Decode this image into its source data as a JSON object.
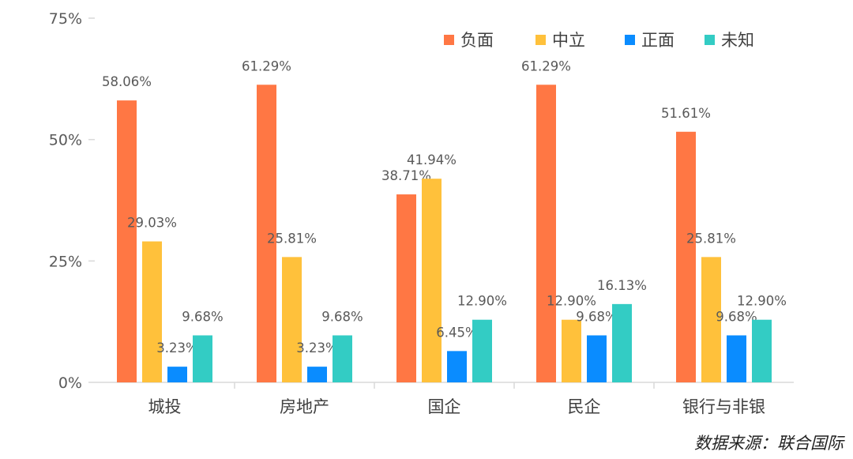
{
  "chart_data": {
    "type": "bar",
    "categories": [
      "城投",
      "房地产",
      "国企",
      "民企",
      "银行与非银"
    ],
    "series": [
      {
        "name": "负面",
        "color": "#FF7744",
        "values": [
          58.06,
          61.29,
          38.71,
          61.29,
          51.61
        ],
        "labels": [
          "58.06%",
          "61.29%",
          "38.71%",
          "61.29%",
          "51.61%"
        ]
      },
      {
        "name": "中立",
        "color": "#FFC13B",
        "values": [
          29.03,
          25.81,
          41.94,
          12.9,
          25.81
        ],
        "labels": [
          "29.03%",
          "25.81%",
          "41.94%",
          "12.90%",
          "25.81%"
        ]
      },
      {
        "name": "正面",
        "color": "#0A8CFF",
        "values": [
          3.23,
          3.23,
          6.45,
          9.68,
          9.68
        ],
        "labels": [
          "3.23%",
          "3.23%",
          "6.45%",
          "9.68%",
          "9.68%"
        ]
      },
      {
        "name": "未知",
        "color": "#33CCC4",
        "values": [
          9.68,
          9.68,
          12.9,
          16.13,
          12.9
        ],
        "labels": [
          "9.68%",
          "9.68%",
          "12.90%",
          "16.13%",
          "12.90%"
        ]
      }
    ],
    "yticks": [
      0,
      25,
      50,
      75
    ],
    "ytick_labels": [
      "0%",
      "25%",
      "50%",
      "75%"
    ],
    "ylim": [
      0,
      75
    ],
    "grid": false,
    "legend_position": "top-right",
    "axis_color": "#D9D9D9"
  },
  "source_note": "数据来源：联合国际"
}
